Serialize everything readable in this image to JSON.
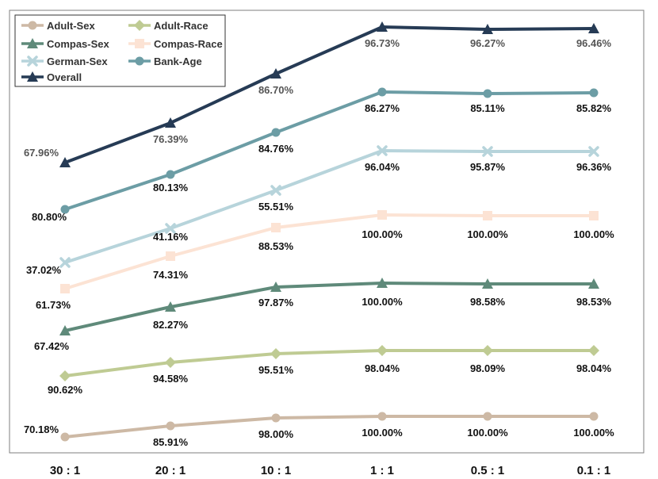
{
  "chart_data": {
    "type": "line",
    "title": "",
    "xlabel": "",
    "ylabel": "",
    "categories": [
      "30 : 1",
      "20 : 1",
      "10 : 1",
      "1 : 1",
      "0.5 : 1",
      "0.1 : 1"
    ],
    "legend_position": "top-left",
    "grid": false,
    "series": [
      {
        "name": "Adult-Sex",
        "color": "#CDB9A5",
        "marker": "circle",
        "labels": [
          "70.18%",
          "85.91%",
          "98.00%",
          "100.00%",
          "100.00%",
          "100.00%"
        ],
        "values": [
          70.18,
          85.91,
          98.0,
          100.0,
          100.0,
          100.0
        ]
      },
      {
        "name": "Adult-Race",
        "color": "#BFCB93",
        "marker": "diamond",
        "labels": [
          "90.62%",
          "94.58%",
          "95.51%",
          "98.04%",
          "98.09%",
          "98.04%"
        ],
        "values": [
          90.62,
          94.58,
          95.51,
          98.04,
          98.09,
          98.04
        ]
      },
      {
        "name": "Compas-Sex",
        "color": "#5F8A7A",
        "marker": "triangle",
        "labels": [
          "67.42%",
          "82.27%",
          "97.87%",
          "100.00%",
          "98.58%",
          "98.53%"
        ],
        "values": [
          67.42,
          82.27,
          97.87,
          100.0,
          98.58,
          98.53
        ]
      },
      {
        "name": "Compas-Race",
        "color": "#FCE3D4",
        "marker": "square",
        "labels": [
          "61.73%",
          "74.31%",
          "88.53%",
          "100.00%",
          "100.00%",
          "100.00%"
        ],
        "values": [
          61.73,
          74.31,
          88.53,
          100.0,
          100.0,
          100.0
        ]
      },
      {
        "name": "German-Sex",
        "color": "#B7D4DB",
        "marker": "x",
        "labels": [
          "37.02%",
          "41.16%",
          "55.51%",
          "96.04%",
          "95.87%",
          "96.36%"
        ],
        "values": [
          37.02,
          41.16,
          55.51,
          96.04,
          95.87,
          96.36
        ]
      },
      {
        "name": "Bank-Age",
        "color": "#6C9DA5",
        "marker": "circle",
        "labels": [
          "80.80%",
          "80.13%",
          "84.76%",
          "86.27%",
          "85.11%",
          "85.82%"
        ],
        "values": [
          80.8,
          80.13,
          84.76,
          86.27,
          85.11,
          85.82
        ]
      },
      {
        "name": "Overall",
        "color": "#263B55",
        "marker": "triangle",
        "labels": [
          "67.96%",
          "76.39%",
          "86.70%",
          "96.73%",
          "96.27%",
          "96.46%"
        ],
        "values": [
          67.96,
          76.39,
          86.7,
          96.73,
          96.27,
          96.46
        ]
      }
    ]
  }
}
